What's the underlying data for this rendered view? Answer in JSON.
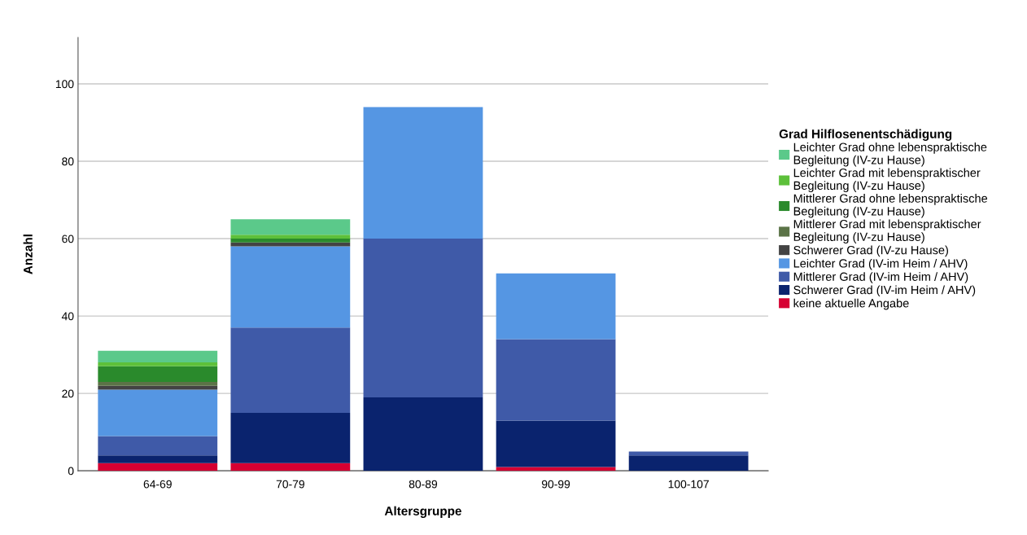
{
  "chart_data": {
    "type": "bar",
    "stacked": true,
    "xlabel": "Altersgruppe",
    "ylabel": "Anzahl",
    "legend_title": "Grad Hilflosenentschädigung",
    "categories": [
      "64-69",
      "70-79",
      "80-89",
      "90-99",
      "100-107"
    ],
    "series": [
      {
        "name": "keine aktuelle Angabe",
        "color": "#d60032",
        "values": [
          2,
          2,
          0,
          1,
          0
        ]
      },
      {
        "name": "Schwerer Grad (IV-im Heim / AHV)",
        "color": "#0a236e",
        "values": [
          2,
          13,
          19,
          12,
          4
        ]
      },
      {
        "name": "Mittlerer Grad (IV-im Heim / AHV)",
        "color": "#3f5aa8",
        "values": [
          5,
          22,
          41,
          21,
          1
        ]
      },
      {
        "name": "Leichter Grad (IV-im Heim / AHV)",
        "color": "#5596e3",
        "values": [
          12,
          21,
          34,
          17,
          0
        ]
      },
      {
        "name": "Schwerer Grad (IV-zu Hause)",
        "color": "#434343",
        "values": [
          1,
          1,
          0,
          0,
          0
        ]
      },
      {
        "name": "Mittlerer Grad mit lebenspraktischer Begleitung (IV-zu Hause)",
        "color": "#5b7347",
        "values": [
          1,
          0,
          0,
          0,
          0
        ]
      },
      {
        "name": "Mittlerer Grad ohne lebenspraktische Begleitung (IV-zu Hause)",
        "color": "#2a8a2c",
        "values": [
          4,
          1,
          0,
          0,
          0
        ]
      },
      {
        "name": "Leichter Grad mit lebenspraktischer Begleitung (IV-zu Hause)",
        "color": "#5dc03a",
        "values": [
          1,
          1,
          0,
          0,
          0
        ]
      },
      {
        "name": "Leichter Grad ohne lebenspraktische Begleitung (IV-zu Hause)",
        "color": "#5bc98a",
        "values": [
          3,
          4,
          0,
          0,
          0
        ]
      }
    ],
    "ylim": [
      0,
      112
    ],
    "yticks": [
      0,
      20,
      40,
      60,
      80,
      100
    ],
    "grid": "y",
    "legend": "right"
  }
}
